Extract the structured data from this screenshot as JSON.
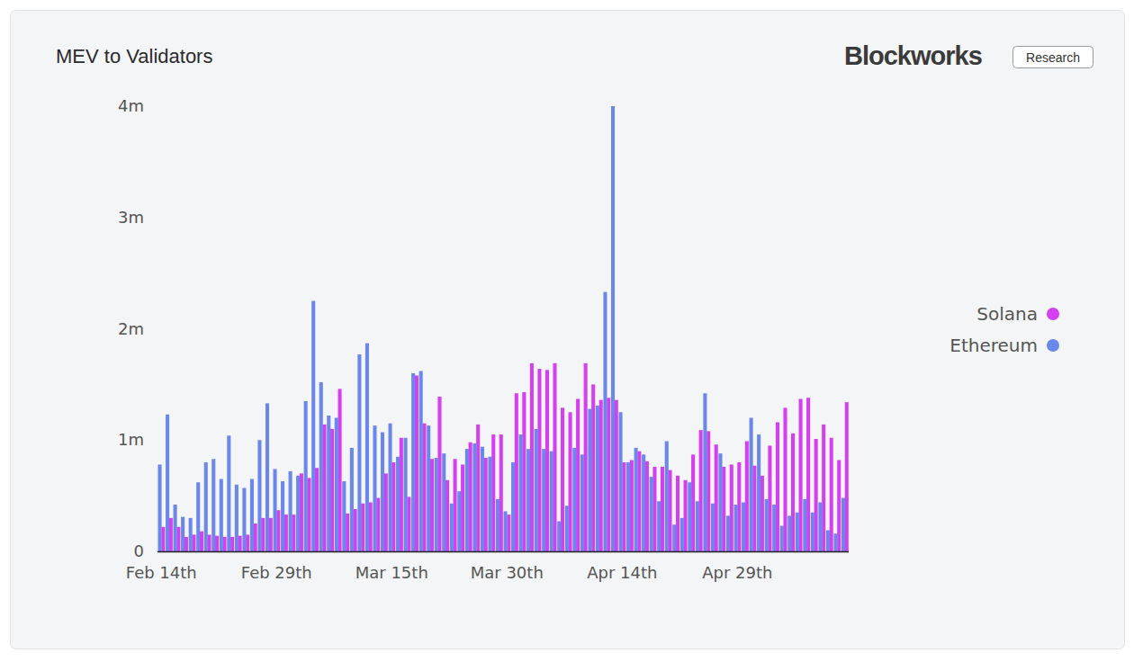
{
  "header": {
    "logo": "Blockworks",
    "badge": "Research"
  },
  "chart_data": {
    "type": "bar",
    "title": "MEV to Validators",
    "categories": [
      "Feb 14th",
      null,
      null,
      null,
      null,
      null,
      null,
      null,
      null,
      null,
      null,
      null,
      null,
      null,
      null,
      "Feb 29th",
      null,
      null,
      null,
      null,
      null,
      null,
      null,
      null,
      null,
      null,
      null,
      null,
      null,
      null,
      "Mar 15th",
      null,
      null,
      null,
      null,
      null,
      null,
      null,
      null,
      null,
      null,
      null,
      null,
      null,
      null,
      "Mar 30th",
      null,
      null,
      null,
      null,
      null,
      null,
      null,
      null,
      null,
      null,
      null,
      null,
      null,
      null,
      "Apr 14th",
      null,
      null,
      null,
      null,
      null,
      null,
      null,
      null,
      null,
      null,
      null,
      null,
      null,
      null,
      "Apr 29th",
      null,
      null,
      null,
      null,
      null,
      null,
      null,
      null,
      null,
      null,
      null,
      null,
      null,
      null
    ],
    "series": [
      {
        "name": "Solana",
        "color": "#d63ff0",
        "values": [
          220000,
          300000,
          220000,
          130000,
          150000,
          180000,
          150000,
          140000,
          130000,
          130000,
          140000,
          150000,
          250000,
          300000,
          300000,
          370000,
          330000,
          330000,
          700000,
          660000,
          750000,
          1140000,
          1100000,
          1460000,
          340000,
          380000,
          430000,
          440000,
          480000,
          700000,
          800000,
          1020000,
          490000,
          1580000,
          1150000,
          830000,
          1390000,
          640000,
          830000,
          780000,
          980000,
          1140000,
          840000,
          1050000,
          1050000,
          330000,
          1420000,
          1430000,
          1690000,
          1640000,
          1630000,
          1690000,
          1290000,
          1250000,
          1370000,
          1690000,
          1500000,
          1360000,
          1380000,
          1360000,
          800000,
          820000,
          900000,
          810000,
          760000,
          760000,
          730000,
          680000,
          640000,
          870000,
          1090000,
          1080000,
          960000,
          760000,
          780000,
          800000,
          990000,
          770000,
          680000,
          950000,
          1160000,
          1290000,
          1060000,
          1370000,
          1380000,
          1010000,
          1140000,
          1020000,
          820000,
          1340000
        ]
      },
      {
        "name": "Ethereum",
        "color": "#6b87ea",
        "values": [
          780000,
          1230000,
          420000,
          310000,
          300000,
          620000,
          800000,
          830000,
          650000,
          1040000,
          600000,
          570000,
          650000,
          1000000,
          1330000,
          740000,
          630000,
          720000,
          680000,
          1350000,
          2250000,
          1520000,
          1220000,
          1200000,
          630000,
          930000,
          1770000,
          1870000,
          1130000,
          1070000,
          1150000,
          850000,
          1020000,
          1600000,
          1620000,
          1130000,
          840000,
          880000,
          430000,
          540000,
          920000,
          970000,
          940000,
          850000,
          470000,
          360000,
          800000,
          1050000,
          920000,
          1100000,
          920000,
          900000,
          270000,
          410000,
          930000,
          870000,
          1280000,
          1310000,
          2330000,
          4000000,
          1250000,
          800000,
          930000,
          870000,
          670000,
          450000,
          990000,
          240000,
          300000,
          620000,
          450000,
          1420000,
          430000,
          880000,
          320000,
          420000,
          440000,
          1200000,
          1050000,
          470000,
          420000,
          230000,
          320000,
          350000,
          470000,
          350000,
          440000,
          190000,
          160000,
          480000
        ]
      }
    ],
    "ylim": [
      0,
      4000000
    ],
    "yticks": [
      0,
      {
        "value": 1000000,
        "label": "1m"
      },
      {
        "value": 2000000,
        "label": "2m"
      },
      {
        "value": 3000000,
        "label": "3m"
      },
      {
        "value": 4000000,
        "label": "4m"
      }
    ],
    "grid": false,
    "legend": "right"
  }
}
